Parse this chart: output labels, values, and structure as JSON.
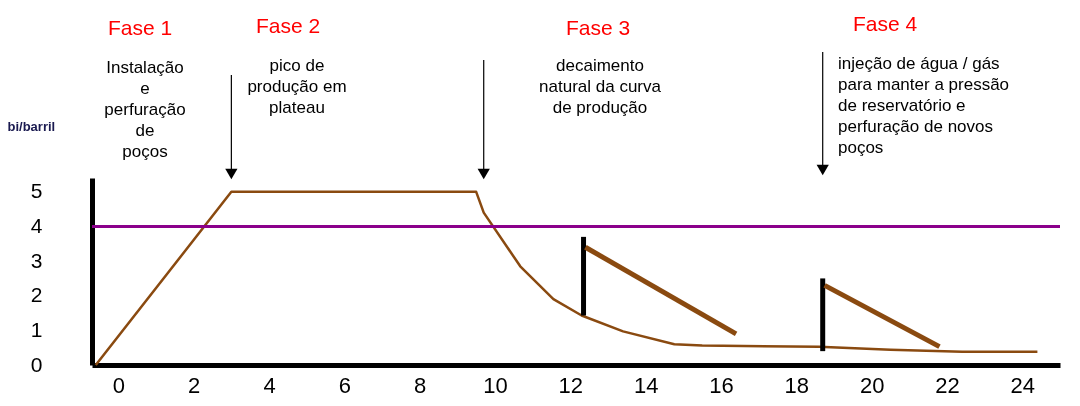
{
  "chart_data": {
    "type": "line",
    "ylabel": "bi/barril",
    "xlim": [
      -0.7,
      25
    ],
    "xticks": [
      0,
      2,
      4,
      6,
      8,
      10,
      12,
      14,
      16,
      18,
      20,
      22,
      24
    ],
    "ylim": [
      0,
      5.4
    ],
    "yticks": [
      0,
      1,
      2,
      3,
      4,
      5
    ],
    "grid": false,
    "series": [
      {
        "color": "#8a4a10",
        "x": [
          -0.6,
          3,
          9.5,
          9.7,
          10.67,
          11.55,
          12.3,
          13.4,
          14.76,
          15.5,
          18.6,
          20.5,
          22.4,
          24.4
        ],
        "values": [
          0,
          5,
          5,
          4.4,
          2.85,
          1.9,
          1.43,
          0.97,
          0.6,
          0.56,
          0.53,
          0.44,
          0.38,
          0.38
        ]
      },
      {
        "color": "#000000",
        "x": [
          12.35,
          12.35
        ],
        "values": [
          1.43,
          3.7
        ]
      },
      {
        "color": "#8a4a10",
        "x": [
          12.4,
          16.4
        ],
        "values": [
          3.4,
          0.9
        ]
      },
      {
        "color": "#000000",
        "x": [
          18.7,
          18.7
        ],
        "values": [
          0.4,
          2.5
        ]
      },
      {
        "color": "#8a4a10",
        "x": [
          18.75,
          21.8
        ],
        "values": [
          2.3,
          0.53
        ]
      }
    ],
    "ref_lines": [
      {
        "axis": "y",
        "value": 4,
        "color": "#8b008b"
      }
    ],
    "annotations": [
      "Fase 1",
      "Instalação\ne\nperfuração\nde\npoços",
      "Fase 2",
      "pico de\nprodução em\nplateau",
      "Fase 3",
      "decaimento\nnatural da curva\nde produção",
      "Fase 4",
      "injeção de água / gás\npara manter a pressão\nde reservatório e\nperfuração de novos\npoços"
    ]
  }
}
